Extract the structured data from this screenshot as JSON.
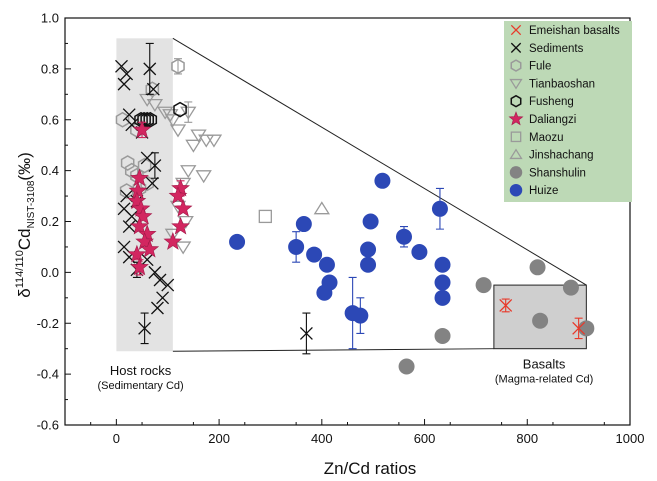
{
  "chart_data": {
    "type": "scatter",
    "xlabel": "Zn/Cd ratios",
    "ylabel_parts": {
      "delta": "δ",
      "sup": "114/110",
      "base": "Cd",
      "sub": "NIST-3108",
      "unit": "(‰)"
    },
    "xlim": [
      -100,
      1000
    ],
    "ylim": [
      -0.6,
      1.0
    ],
    "xticks": [
      0,
      200,
      400,
      600,
      800,
      1000
    ],
    "yticks": [
      -0.6,
      -0.4,
      -0.2,
      0.0,
      0.2,
      0.4,
      0.6,
      0.8,
      1.0
    ],
    "ytick_labels": [
      "-0.6",
      "-0.4",
      "-0.2",
      "0.0",
      "0.2",
      "0.4",
      "0.6",
      "0.8",
      "1.0"
    ],
    "grid": false,
    "legend_position": "top-right",
    "annotations": {
      "host": {
        "title": "Host rocks",
        "subtitle": "(Sedimentary Cd)",
        "box_x": [
          0,
          110
        ],
        "box_y": [
          -0.31,
          0.92
        ]
      },
      "basalt": {
        "title": "Basalts",
        "subtitle": "(Magma-related Cd)",
        "box_x": [
          735,
          915
        ],
        "box_y": [
          -0.3,
          -0.05
        ]
      }
    },
    "series": [
      {
        "name": "Emeishan basalts",
        "marker": "x",
        "color": "#e8392a",
        "points": [
          [
            758,
            -0.13,
            0.025
          ],
          [
            900,
            -0.22,
            0.04
          ]
        ]
      },
      {
        "name": "Sediments",
        "marker": "x",
        "color": "#111111",
        "points": [
          [
            10,
            0.81,
            0
          ],
          [
            15,
            0.74,
            0
          ],
          [
            20,
            0.78,
            0
          ],
          [
            25,
            0.62,
            0
          ],
          [
            30,
            0.58,
            0
          ],
          [
            50,
            0.55,
            0
          ],
          [
            65,
            0.8,
            0.1
          ],
          [
            72,
            0.72,
            0
          ],
          [
            60,
            0.45,
            0
          ],
          [
            75,
            0.42,
            0.05
          ],
          [
            70,
            0.35,
            0
          ],
          [
            20,
            0.3,
            0
          ],
          [
            40,
            0.28,
            0
          ],
          [
            15,
            0.25,
            0
          ],
          [
            30,
            0.22,
            0
          ],
          [
            25,
            0.18,
            0
          ],
          [
            15,
            0.1,
            0
          ],
          [
            25,
            0.06,
            0
          ],
          [
            40,
            0.01,
            0.03
          ],
          [
            60,
            0.05,
            0
          ],
          [
            75,
            0.0,
            0
          ],
          [
            85,
            -0.03,
            0
          ],
          [
            90,
            -0.1,
            0
          ],
          [
            80,
            -0.14,
            0
          ],
          [
            55,
            -0.22,
            0.06
          ],
          [
            100,
            -0.05,
            0
          ],
          [
            370,
            -0.24,
            0.08
          ]
        ]
      },
      {
        "name": "Fule",
        "marker": "hexagon",
        "color": "#9a9a9a",
        "points": [
          [
            12,
            0.6,
            0
          ],
          [
            22,
            0.43,
            0
          ],
          [
            30,
            0.4,
            0
          ],
          [
            40,
            0.38,
            0
          ],
          [
            55,
            0.42,
            0
          ],
          [
            20,
            0.32,
            0
          ],
          [
            45,
            0.33,
            0
          ],
          [
            60,
            0.35,
            0
          ],
          [
            70,
            0.72,
            0
          ],
          [
            120,
            0.81,
            0.03
          ],
          [
            40,
            0.56,
            0
          ]
        ]
      },
      {
        "name": "Tianbaoshan",
        "marker": "triangle-down",
        "color": "#9a9a9a",
        "points": [
          [
            60,
            0.68,
            0
          ],
          [
            75,
            0.66,
            0
          ],
          [
            95,
            0.63,
            0
          ],
          [
            105,
            0.62,
            0
          ],
          [
            110,
            0.6,
            0
          ],
          [
            140,
            0.63,
            0.04
          ],
          [
            120,
            0.56,
            0
          ],
          [
            160,
            0.54,
            0
          ],
          [
            175,
            0.52,
            0
          ],
          [
            150,
            0.5,
            0
          ],
          [
            190,
            0.52,
            0
          ],
          [
            140,
            0.4,
            0
          ],
          [
            170,
            0.38,
            0
          ],
          [
            130,
            0.35,
            0
          ],
          [
            120,
            0.26,
            0
          ],
          [
            135,
            0.2,
            0
          ],
          [
            130,
            0.1,
            0
          ],
          [
            110,
            0.15,
            0
          ]
        ]
      },
      {
        "name": "Fusheng",
        "marker": "hexagon",
        "color": "#111111",
        "points": [
          [
            48,
            0.6,
            0
          ],
          [
            54,
            0.6,
            0
          ],
          [
            60,
            0.6,
            0
          ],
          [
            66,
            0.6,
            0
          ],
          [
            124,
            0.64,
            0
          ]
        ]
      },
      {
        "name": "Daliangzi",
        "marker": "star",
        "color": "#d22660",
        "points": [
          [
            50,
            0.56,
            0.03
          ],
          [
            45,
            0.37,
            0
          ],
          [
            42,
            0.32,
            0
          ],
          [
            40,
            0.28,
            0
          ],
          [
            48,
            0.25,
            0
          ],
          [
            52,
            0.22,
            0
          ],
          [
            45,
            0.18,
            0
          ],
          [
            60,
            0.15,
            0
          ],
          [
            55,
            0.12,
            0
          ],
          [
            65,
            0.09,
            0
          ],
          [
            40,
            0.07,
            0
          ],
          [
            45,
            0.02,
            0.03
          ],
          [
            125,
            0.33,
            0.03
          ],
          [
            120,
            0.3,
            0
          ],
          [
            130,
            0.25,
            0
          ],
          [
            125,
            0.18,
            0
          ],
          [
            110,
            0.12,
            0
          ]
        ]
      },
      {
        "name": "Maozu",
        "marker": "square",
        "color": "#9a9a9a",
        "points": [
          [
            290,
            0.22,
            0
          ]
        ]
      },
      {
        "name": "Jinshachang",
        "marker": "triangle-up",
        "color": "#9a9a9a",
        "points": [
          [
            400,
            0.25,
            0
          ]
        ]
      },
      {
        "name": "Shanshulin",
        "marker": "circle",
        "color": "#838383",
        "points": [
          [
            715,
            -0.05,
            0
          ],
          [
            820,
            0.02,
            0
          ],
          [
            825,
            -0.19,
            0
          ],
          [
            885,
            -0.06,
            0
          ],
          [
            915,
            -0.22,
            0
          ],
          [
            565,
            -0.37,
            0
          ],
          [
            635,
            -0.25,
            0
          ]
        ]
      },
      {
        "name": "Huize",
        "marker": "circle",
        "color": "#2c48b6",
        "points": [
          [
            518,
            0.36,
            0
          ],
          [
            630,
            0.25,
            0.08
          ],
          [
            495,
            0.2,
            0
          ],
          [
            365,
            0.19,
            0
          ],
          [
            235,
            0.12,
            0
          ],
          [
            350,
            0.1,
            0.06
          ],
          [
            560,
            0.14,
            0.04
          ],
          [
            590,
            0.08,
            0
          ],
          [
            490,
            0.09,
            0
          ],
          [
            385,
            0.07,
            0
          ],
          [
            410,
            0.03,
            0
          ],
          [
            490,
            0.03,
            0
          ],
          [
            635,
            0.03,
            0
          ],
          [
            415,
            -0.04,
            0
          ],
          [
            405,
            -0.08,
            0
          ],
          [
            635,
            -0.04,
            0
          ],
          [
            635,
            -0.1,
            0
          ],
          [
            460,
            -0.16,
            0.14
          ],
          [
            475,
            -0.17,
            0.07
          ]
        ]
      }
    ]
  }
}
